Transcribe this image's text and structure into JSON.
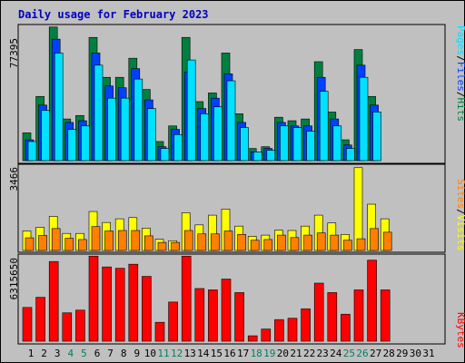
{
  "chart_data": {
    "type": "bar",
    "title": "Daily usage for February 2023",
    "days": [
      "1",
      "2",
      "3",
      "4",
      "5",
      "6",
      "7",
      "8",
      "9",
      "10",
      "11",
      "12",
      "13",
      "14",
      "15",
      "16",
      "17",
      "18",
      "19",
      "20",
      "21",
      "22",
      "23",
      "24",
      "25",
      "26",
      "27",
      "28",
      "29",
      "30",
      "31"
    ],
    "weekend_days": [
      4,
      5,
      11,
      12,
      18,
      19,
      25,
      26
    ],
    "panels": {
      "top": {
        "max_label": "77395",
        "ylim": [
          0,
          77395
        ],
        "series": [
          {
            "name": "Hits",
            "color": "#008040",
            "values": [
              16000,
              37000,
              77000,
              24000,
              26000,
              71000,
              48000,
              48000,
              59000,
              41000,
              11000,
              20000,
              71000,
              34000,
              39000,
              62000,
              27000,
              7000,
              8000,
              25000,
              23000,
              24000,
              57000,
              28000,
              12000,
              64000,
              37000,
              0,
              0,
              0,
              0
            ]
          },
          {
            "name": "Files",
            "color": "#0040FF",
            "values": [
              12000,
              32000,
              70000,
              22000,
              23000,
              62000,
              43000,
              42000,
              53000,
              35000,
              8000,
              18000,
              51000,
              30000,
              36000,
              50000,
              22000,
              5000,
              7000,
              22000,
              20000,
              20000,
              48000,
              24000,
              9000,
              55000,
              32000,
              0,
              0,
              0,
              0
            ]
          },
          {
            "name": "Pages",
            "color": "#00E0FF",
            "values": [
              11000,
              29000,
              62000,
              18000,
              20000,
              55000,
              36000,
              36000,
              47000,
              30000,
              7000,
              15000,
              58000,
              27000,
              31000,
              46000,
              19000,
              5000,
              6000,
              20000,
              19000,
              17000,
              40000,
              20000,
              7000,
              48000,
              28000,
              0,
              0,
              0,
              0
            ]
          }
        ],
        "side_label": [
          "Pages",
          "Files",
          "Hits"
        ],
        "side_colors": [
          "#00E0FF",
          "#0040FF",
          "#008040"
        ]
      },
      "middle": {
        "max_label": "3466",
        "ylim": [
          0,
          3466
        ],
        "series": [
          {
            "name": "Visits",
            "color": "#FFFF00",
            "values": [
              800,
              950,
              1400,
              700,
              700,
              1600,
              1150,
              1300,
              1350,
              920,
              460,
              400,
              1550,
              1050,
              1450,
              1700,
              1000,
              580,
              630,
              830,
              820,
              1000,
              1450,
              1130,
              660,
              3400,
              1900,
              1300,
              0,
              0,
              0
            ]
          },
          {
            "name": "Sites",
            "color": "#FF8000",
            "values": [
              520,
              620,
              900,
              500,
              450,
              980,
              800,
              820,
              820,
              600,
              330,
              330,
              820,
              680,
              680,
              800,
              660,
              420,
              450,
              630,
              530,
              630,
              720,
              630,
              420,
              480,
              900,
              750,
              0,
              0,
              0
            ]
          }
        ],
        "side_label": [
          "Sites",
          "Visits"
        ],
        "side_colors": [
          "#FF8000",
          "#FFFF00"
        ]
      },
      "bottom": {
        "max_label": "6315650",
        "ylim": [
          0,
          6315650
        ],
        "series": [
          {
            "name": "KBytes",
            "color": "#FF0000",
            "values": [
              2500000,
              3250000,
              5900000,
              2100000,
              2300000,
              6300000,
              5500000,
              5400000,
              5700000,
              4800000,
              1400000,
              2900000,
              6300000,
              3900000,
              3800000,
              4600000,
              3600000,
              400000,
              900000,
              1600000,
              1700000,
              2400000,
              4300000,
              3600000,
              2000000,
              3800000,
              6000000,
              3800000,
              0,
              0,
              0
            ]
          }
        ],
        "side_label": [
          "KBytes"
        ],
        "side_colors": [
          "#FF0000"
        ]
      }
    }
  }
}
